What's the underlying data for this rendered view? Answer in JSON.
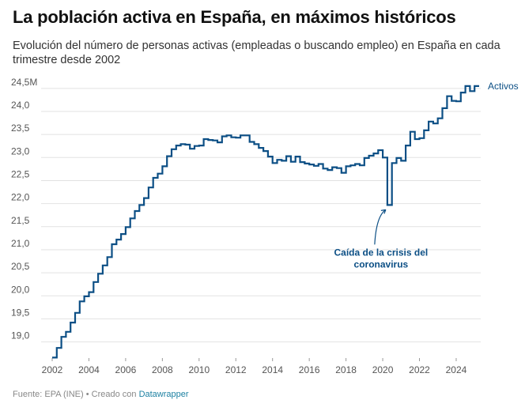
{
  "header": {
    "title": "La población activa en España, en máximos históricos",
    "subtitle": "Evolución del número de personas activas (empleadas o buscando empleo) en España en cada trimestre desde 2002"
  },
  "footer": {
    "source": "Fuente: EPA (INE)",
    "separator": " • Creado con ",
    "tool": "Datawrapper"
  },
  "colors": {
    "line": "#0c4f85",
    "grid": "#e2e2e2",
    "axis_text": "#555555",
    "annotation": "#0c4f85"
  },
  "chart_data": {
    "type": "line",
    "step": true,
    "title": "La población activa en España, en máximos históricos",
    "xlabel": "",
    "ylabel": "",
    "xlim": [
      2002,
      2025.25
    ],
    "ylim": [
      18.65,
      24.6
    ],
    "x_ticks": [
      2002,
      2004,
      2006,
      2008,
      2010,
      2012,
      2014,
      2016,
      2018,
      2020,
      2022,
      2024
    ],
    "y_ticks": [
      {
        "value": 19.0,
        "label": "19,0"
      },
      {
        "value": 19.5,
        "label": "19,5"
      },
      {
        "value": 20.0,
        "label": "20,0"
      },
      {
        "value": 20.5,
        "label": "20,5"
      },
      {
        "value": 21.0,
        "label": "21,0"
      },
      {
        "value": 21.5,
        "label": "21,5"
      },
      {
        "value": 22.0,
        "label": "22,0"
      },
      {
        "value": 22.5,
        "label": "22,5"
      },
      {
        "value": 23.0,
        "label": "23,0"
      },
      {
        "value": 23.5,
        "label": "23,5"
      },
      {
        "value": 24.0,
        "label": "24,0"
      },
      {
        "value": 24.5,
        "label": "24,5M"
      }
    ],
    "series": [
      {
        "name": "Activos",
        "x": [
          2002.0,
          2002.25,
          2002.5,
          2002.75,
          2003.0,
          2003.25,
          2003.5,
          2003.75,
          2004.0,
          2004.25,
          2004.5,
          2004.75,
          2005.0,
          2005.25,
          2005.5,
          2005.75,
          2006.0,
          2006.25,
          2006.5,
          2006.75,
          2007.0,
          2007.25,
          2007.5,
          2007.75,
          2008.0,
          2008.25,
          2008.5,
          2008.75,
          2009.0,
          2009.25,
          2009.5,
          2009.75,
          2010.0,
          2010.25,
          2010.5,
          2010.75,
          2011.0,
          2011.25,
          2011.5,
          2011.75,
          2012.0,
          2012.25,
          2012.5,
          2012.75,
          2013.0,
          2013.25,
          2013.5,
          2013.75,
          2014.0,
          2014.25,
          2014.5,
          2014.75,
          2015.0,
          2015.25,
          2015.5,
          2015.75,
          2016.0,
          2016.25,
          2016.5,
          2016.75,
          2017.0,
          2017.25,
          2017.5,
          2017.75,
          2018.0,
          2018.25,
          2018.5,
          2018.75,
          2019.0,
          2019.25,
          2019.5,
          2019.75,
          2020.0,
          2020.25,
          2020.5,
          2020.75,
          2021.0,
          2021.25,
          2021.5,
          2021.75,
          2022.0,
          2022.25,
          2022.5,
          2022.75,
          2023.0,
          2023.25,
          2023.5,
          2023.75,
          2024.0,
          2024.25,
          2024.5,
          2024.75,
          2025.0
        ],
        "values": [
          18.66,
          18.87,
          19.11,
          19.22,
          19.42,
          19.63,
          19.88,
          19.99,
          20.08,
          20.3,
          20.48,
          20.66,
          20.84,
          21.12,
          21.22,
          21.34,
          21.49,
          21.68,
          21.84,
          21.97,
          22.12,
          22.35,
          22.56,
          22.65,
          22.81,
          23.03,
          23.18,
          23.26,
          23.29,
          23.28,
          23.19,
          23.25,
          23.26,
          23.4,
          23.38,
          23.37,
          23.33,
          23.46,
          23.48,
          23.44,
          23.43,
          23.48,
          23.48,
          23.34,
          23.29,
          23.21,
          23.14,
          23.02,
          22.88,
          22.95,
          22.93,
          23.03,
          22.91,
          23.02,
          22.9,
          22.87,
          22.85,
          22.82,
          22.86,
          22.76,
          22.73,
          22.79,
          22.77,
          22.67,
          22.81,
          22.83,
          22.86,
          22.83,
          22.99,
          23.04,
          23.09,
          23.16,
          23.0,
          21.97,
          22.88,
          22.99,
          22.93,
          23.26,
          23.56,
          23.4,
          23.42,
          23.59,
          23.78,
          23.74,
          23.85,
          24.07,
          24.33,
          24.23,
          24.22,
          24.41,
          24.55,
          24.44,
          24.55
        ]
      }
    ],
    "series_label": "Activos",
    "annotations": [
      {
        "text_lines": [
          "Caída de la crisis del",
          "coronavirus"
        ],
        "x": 2020.25,
        "y": 21.97
      }
    ]
  }
}
